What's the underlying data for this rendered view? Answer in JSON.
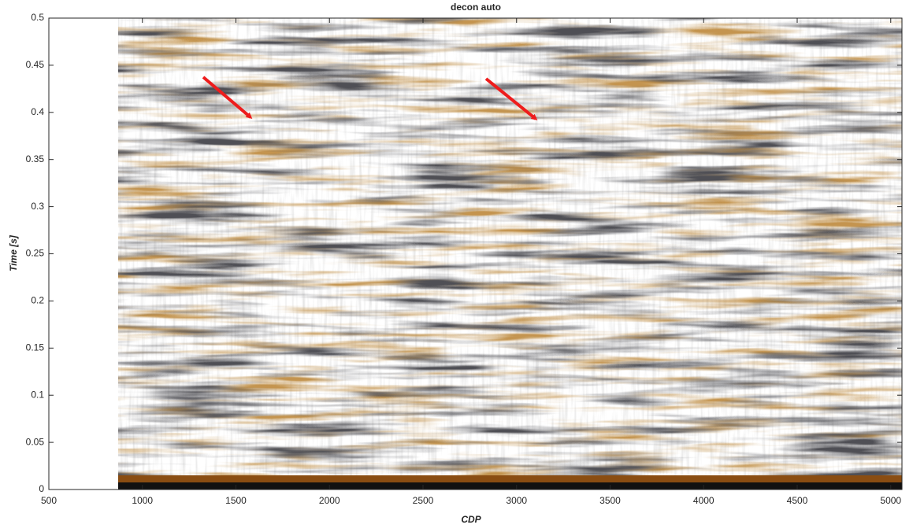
{
  "chart_data": {
    "type": "image",
    "title": "decon auto",
    "xlabel": "CDP",
    "ylabel": "Time [s]",
    "xlim": [
      500,
      5060
    ],
    "xticks": [
      500,
      1000,
      1500,
      2000,
      2500,
      3000,
      3500,
      4000,
      4500,
      5000
    ],
    "ylim": [
      0,
      0.5
    ],
    "yticks": [
      0,
      0.05,
      0.1,
      0.15,
      0.2,
      0.25,
      0.3,
      0.35,
      0.4,
      0.45,
      0.5
    ]
  }
}
